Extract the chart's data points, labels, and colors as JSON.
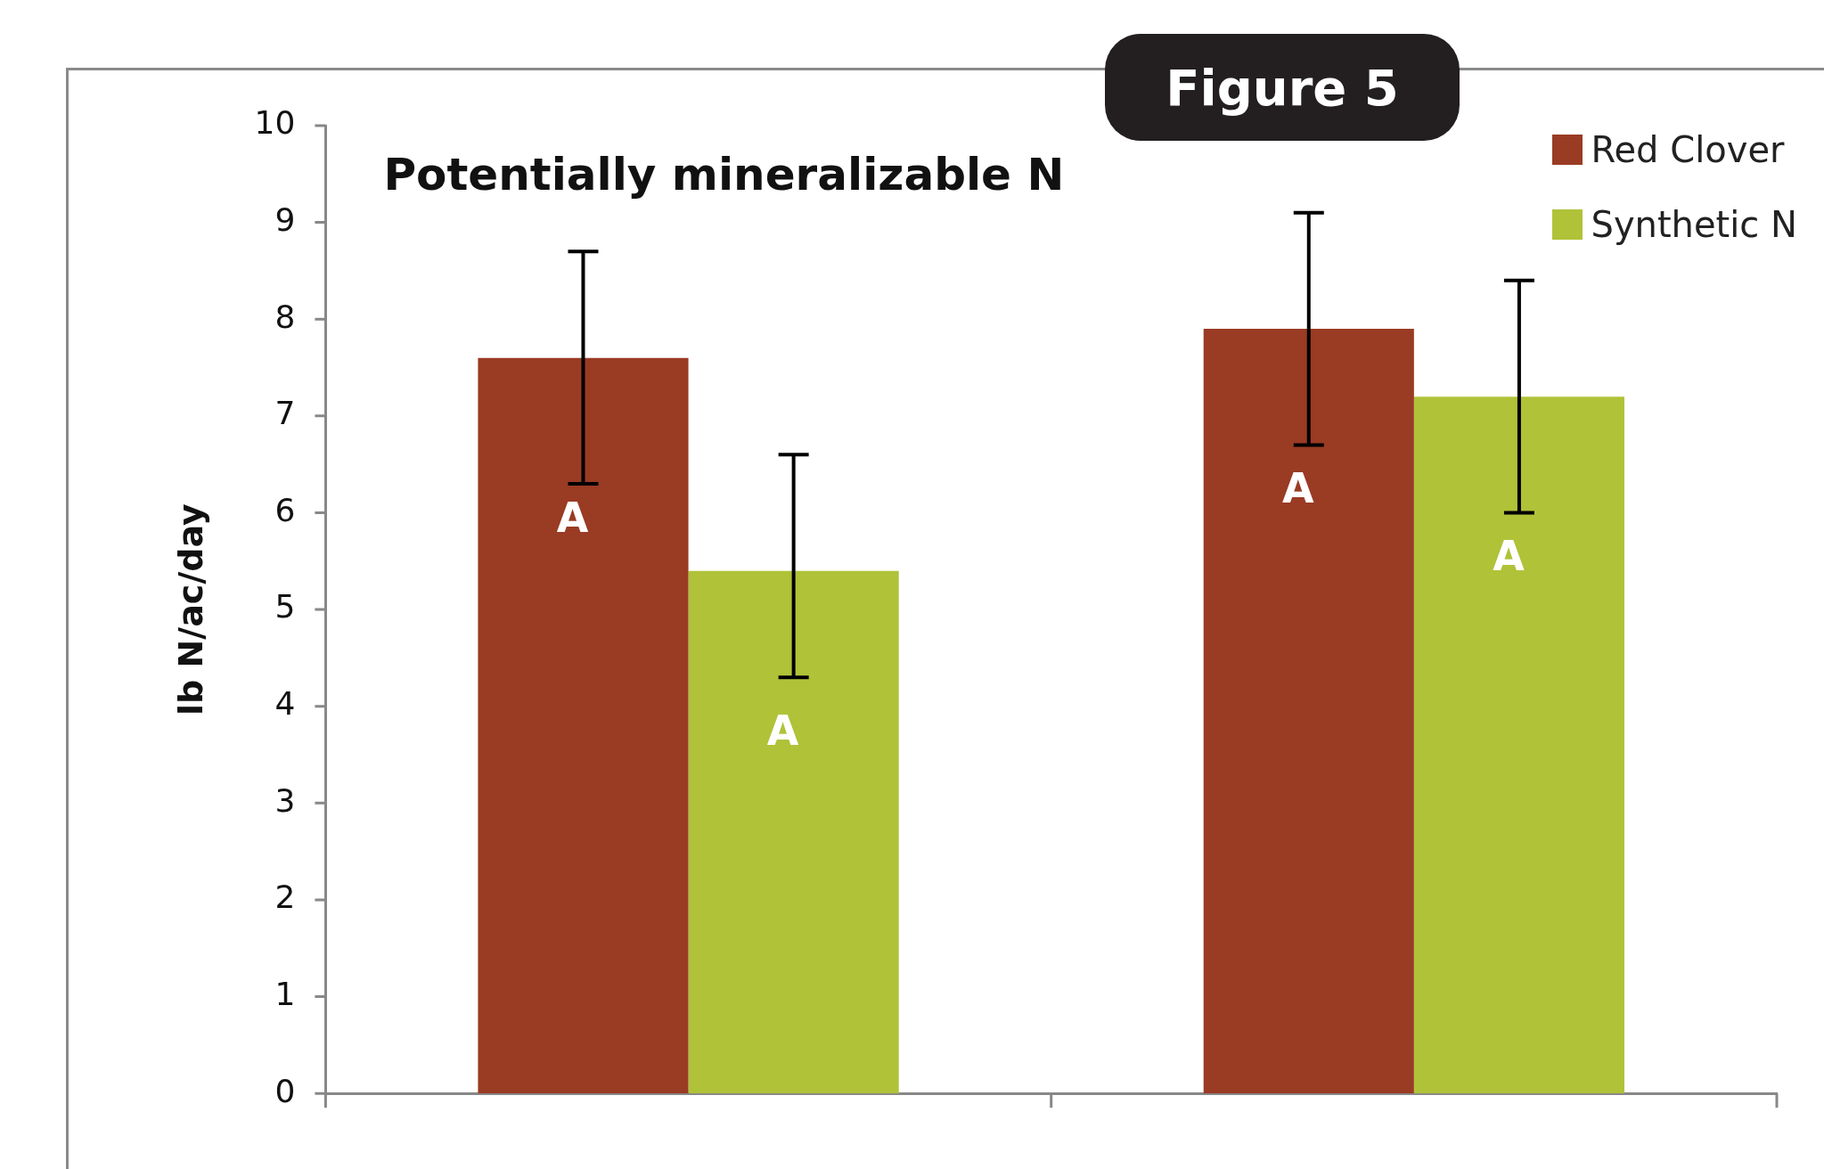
{
  "chart_data": {
    "type": "bar",
    "title": "Potentially mineralizable N",
    "ylabel": "lb N/ac/day",
    "annotations": [
      "Figure 5"
    ],
    "categories": [
      null,
      null
    ],
    "series": [
      {
        "name": "Red Clover",
        "color": "#9a3b24",
        "values": [
          7.6,
          7.9
        ],
        "errors": [
          [
            6.3,
            8.7
          ],
          [
            6.7,
            9.1
          ]
        ],
        "value_labels": [
          "A",
          "A"
        ]
      },
      {
        "name": "Synthetic N",
        "color": "#b0c238",
        "values": [
          5.4,
          7.2
        ],
        "errors": [
          [
            4.3,
            6.6
          ],
          [
            6.0,
            8.4
          ]
        ],
        "value_labels": [
          "A",
          "A"
        ]
      }
    ],
    "ylim": [
      0,
      10
    ],
    "yticks": [
      0,
      1,
      2,
      3,
      4,
      5,
      6,
      7,
      8,
      9,
      10
    ],
    "grid": false,
    "legend": "top right"
  }
}
